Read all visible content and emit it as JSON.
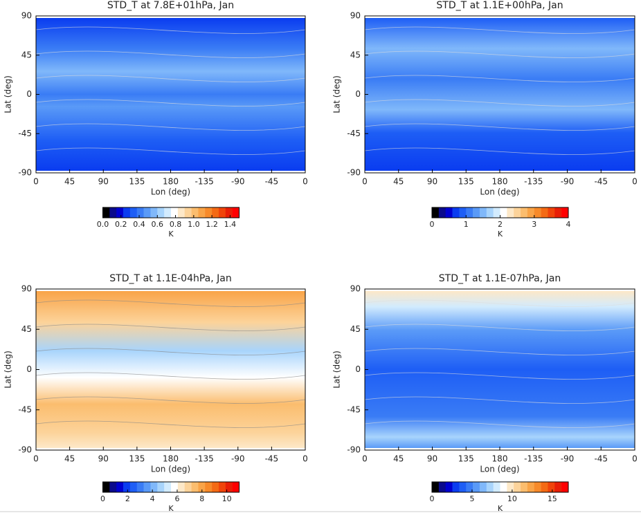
{
  "colormap": [
    "#000000",
    "#0a0a8c",
    "#0000d0",
    "#0a3cf0",
    "#1e5ef5",
    "#3a7cf5",
    "#5a9af7",
    "#80b8fa",
    "#a8d4fc",
    "#d2ebfe",
    "#ffffff",
    "#fde8c8",
    "#fcd39a",
    "#fbbd6e",
    "#f9a448",
    "#f78a2a",
    "#f46a14",
    "#f0440a",
    "#e81e06",
    "#ff0000"
  ],
  "chart_data": [
    {
      "type": "map",
      "title": "STD_T at  7.8E+01hPa, Jan",
      "xlabel": "Lon (deg)",
      "ylabel": "Lat (deg)",
      "xlim": [
        0,
        360
      ],
      "xticks": [
        0,
        45,
        90,
        135,
        180,
        {
          "value": 225,
          "label": "-135"
        },
        {
          "value": 270,
          "label": "-90"
        },
        {
          "value": 315,
          "label": "-45"
        },
        {
          "value": 360,
          "label": "0"
        }
      ],
      "ylim": [
        -90,
        90
      ],
      "yticks": [
        -90,
        -45,
        0,
        45,
        90
      ],
      "colorbar": {
        "label": "K",
        "lim": [
          0,
          1.5
        ],
        "ticks": [
          {
            "value": 0,
            "label": "0.0"
          },
          0.2,
          0.4,
          0.6,
          0.8,
          {
            "value": 1,
            "label": "1.0"
          },
          1.2,
          1.4
        ]
      }
    },
    {
      "type": "map",
      "title": "STD_T at  1.1E+00hPa, Jan",
      "xlabel": "Lon (deg)",
      "ylabel": "Lat (deg)",
      "xlim": [
        0,
        360
      ],
      "xticks": [
        0,
        45,
        90,
        135,
        180,
        {
          "value": 225,
          "label": "-135"
        },
        {
          "value": 270,
          "label": "-90"
        },
        {
          "value": 315,
          "label": "-45"
        },
        {
          "value": 360,
          "label": "0"
        }
      ],
      "ylim": [
        -90,
        90
      ],
      "yticks": [
        -90,
        -45,
        0,
        45,
        90
      ],
      "colorbar": {
        "label": "K",
        "lim": [
          0,
          4
        ],
        "ticks": [
          0,
          1,
          2,
          3,
          4
        ]
      }
    },
    {
      "type": "map",
      "title": "STD_T at  1.1E-04hPa, Jan",
      "xlabel": "Lon (deg)",
      "ylabel": "Lat (deg)",
      "xlim": [
        0,
        360
      ],
      "xticks": [
        0,
        45,
        90,
        135,
        180,
        {
          "value": 225,
          "label": "-135"
        },
        {
          "value": 270,
          "label": "-90"
        },
        {
          "value": 315,
          "label": "-45"
        },
        {
          "value": 360,
          "label": "0"
        }
      ],
      "ylim": [
        -90,
        90
      ],
      "yticks": [
        -90,
        -45,
        0,
        45,
        90
      ],
      "colorbar": {
        "label": "K",
        "lim": [
          0,
          11
        ],
        "ticks": [
          0,
          2,
          4,
          6,
          8,
          10
        ]
      }
    },
    {
      "type": "map",
      "title": "STD_T at  1.1E-07hPa, Jan",
      "xlabel": "Lon (deg)",
      "ylabel": "Lat (deg)",
      "xlim": [
        0,
        360
      ],
      "xticks": [
        0,
        45,
        90,
        135,
        180,
        {
          "value": 225,
          "label": "-135"
        },
        {
          "value": 270,
          "label": "-90"
        },
        {
          "value": 315,
          "label": "-45"
        },
        {
          "value": 360,
          "label": "0"
        }
      ],
      "ylim": [
        -90,
        90
      ],
      "yticks": [
        -90,
        -45,
        0,
        45,
        90
      ],
      "colorbar": {
        "label": "K",
        "lim": [
          0,
          17
        ],
        "ticks": [
          0,
          5,
          10,
          15
        ]
      }
    }
  ]
}
